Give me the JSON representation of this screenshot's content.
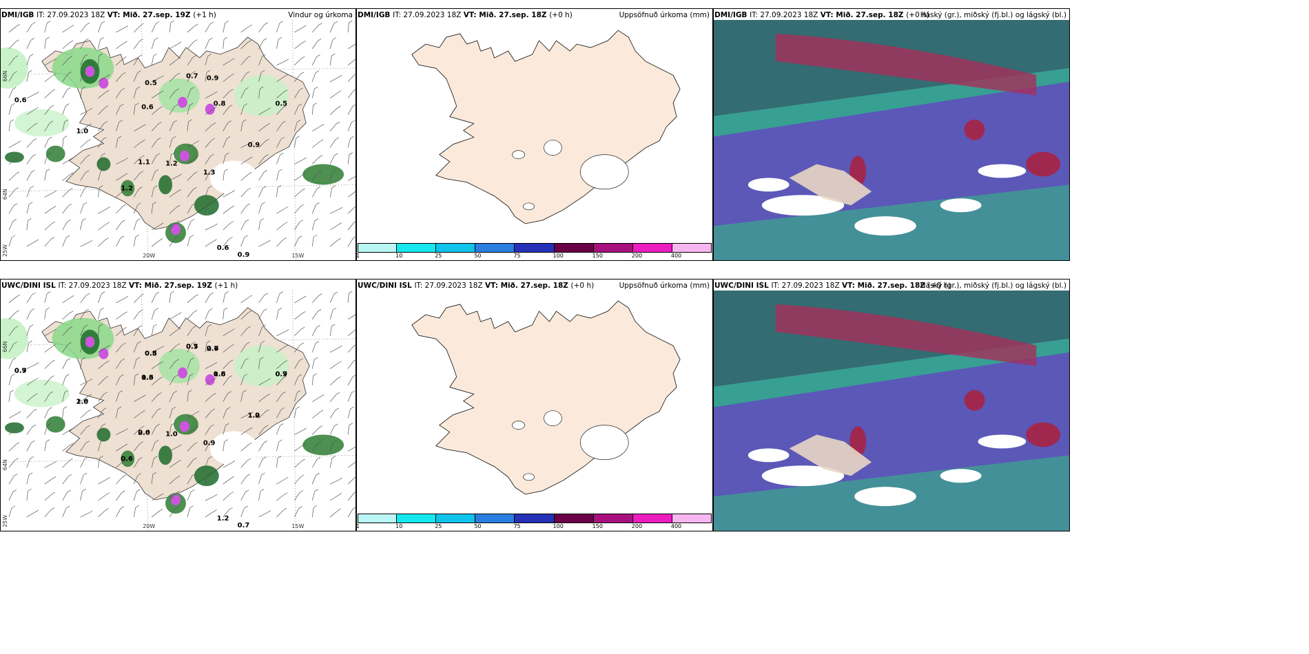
{
  "panels": [
    {
      "model": "DMI/IGB",
      "init": "IT: 27.09.2023 18Z",
      "vt_label": "VT:",
      "valid": "Mið. 27.sep. 19Z",
      "lead": "(+1 h)",
      "title": "Vindur og úrkoma",
      "type": "wind"
    },
    {
      "model": "DMI/IGB",
      "init": "IT: 27.09.2023 18Z",
      "vt_label": "VT:",
      "valid": "Mið. 27.sep. 18Z",
      "lead": "(+0 h)",
      "title": "Uppsöfnuð úrkoma (mm)",
      "type": "accum"
    },
    {
      "model": "DMI/IGB",
      "init": "IT: 27.09.2023 18Z",
      "vt_label": "VT:",
      "valid": "Mið. 27.sep. 18Z",
      "lead": "(+0 h)",
      "title": "Háský (gr.), miðský (fj.bl.) og lágský (bl.)",
      "type": "cloud"
    },
    {
      "model": "UWC/DINI ISL",
      "init": "IT: 27.09.2023 18Z",
      "vt_label": "VT:",
      "valid": "Mið. 27.sep. 19Z",
      "lead": "(+1 h)",
      "title": "",
      "type": "wind"
    },
    {
      "model": "UWC/DINI ISL",
      "init": "IT: 27.09.2023 18Z",
      "vt_label": "VT:",
      "valid": "Mið. 27.sep. 18Z",
      "lead": "(+0 h)",
      "title": "Uppsöfnuð úrkoma (mm)",
      "type": "accum"
    },
    {
      "model": "UWC/DINI ISL",
      "init": "IT: 27.09.2023 18Z",
      "vt_label": "VT:",
      "valid": "Mið. 27.sep. 18Z",
      "lead": "(+0 h)",
      "title": "Háský (gr.), miðský (fj.bl.) og lágský (bl.)",
      "type": "cloud"
    }
  ],
  "axis_labels": {
    "lon_a": "20W",
    "lon_b": "15W",
    "lat_a": "66N",
    "lat_b": "64N",
    "lon_c": "25W"
  },
  "colorbar": {
    "labels": [
      "1",
      "10",
      "25",
      "50",
      "75",
      "100",
      "150",
      "200",
      "400"
    ],
    "colors": [
      "#b9f6f4",
      "#14e8ee",
      "#0fc3ec",
      "#2b7ee0",
      "#2531b7",
      "#6a0046",
      "#a8107e",
      "#ee1dbf",
      "#f7b6f0"
    ]
  },
  "precip_values_top": [
    "0.6",
    "0.5",
    "0.6",
    "0.7",
    "0.9",
    "0.8",
    "0.5",
    "1.0",
    "0.9",
    "1.1",
    "1.2",
    "1.2",
    "1.3",
    "0.6",
    "0.9"
  ],
  "precip_values_bottom": [
    "0.9",
    "0.5",
    "0.6",
    "0.7",
    "0.6",
    "0.8",
    "0.9",
    "1.0",
    "1.2",
    "2.0",
    "0.6",
    "1.0",
    "0.9",
    "1.2",
    "0.7",
    "0.7",
    "0.8",
    "1.3",
    "0.5",
    "2.7",
    "1.6",
    "0.7",
    "2.6",
    "1.0",
    "0.6"
  ]
}
